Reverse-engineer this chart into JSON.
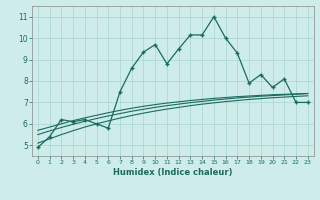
{
  "x": [
    0,
    1,
    2,
    3,
    4,
    5,
    6,
    7,
    8,
    9,
    10,
    11,
    12,
    13,
    14,
    15,
    16,
    17,
    18,
    19,
    20,
    21,
    22,
    23
  ],
  "main_line": [
    4.9,
    5.4,
    6.2,
    6.1,
    6.2,
    6.0,
    5.8,
    7.5,
    8.6,
    9.35,
    9.7,
    8.8,
    9.5,
    10.15,
    10.15,
    11.0,
    10.0,
    9.3,
    7.9,
    8.3,
    7.7,
    8.1,
    7.0,
    7.0
  ],
  "reg1": [
    5.7,
    5.85,
    6.0,
    6.15,
    6.28,
    6.4,
    6.52,
    6.63,
    6.73,
    6.82,
    6.9,
    6.97,
    7.03,
    7.09,
    7.14,
    7.19,
    7.23,
    7.27,
    7.3,
    7.33,
    7.36,
    7.38,
    7.4,
    7.42
  ],
  "reg2": [
    5.5,
    5.67,
    5.83,
    5.98,
    6.12,
    6.25,
    6.37,
    6.48,
    6.59,
    6.68,
    6.77,
    6.85,
    6.92,
    6.99,
    7.05,
    7.11,
    7.16,
    7.21,
    7.25,
    7.29,
    7.32,
    7.35,
    7.38,
    7.41
  ],
  "reg3": [
    5.1,
    5.3,
    5.5,
    5.68,
    5.85,
    6.0,
    6.14,
    6.27,
    6.39,
    6.5,
    6.6,
    6.69,
    6.77,
    6.85,
    6.92,
    6.98,
    7.04,
    7.09,
    7.14,
    7.18,
    7.22,
    7.25,
    7.28,
    7.31
  ],
  "line_color": "#1a6b5e",
  "bg_color": "#cdecea",
  "grid_color": "#aed8d5",
  "xlabel": "Humidex (Indice chaleur)",
  "ylim": [
    4.5,
    11.5
  ],
  "xlim": [
    -0.5,
    23.5
  ],
  "yticks": [
    5,
    6,
    7,
    8,
    9,
    10,
    11
  ],
  "xticks": [
    0,
    1,
    2,
    3,
    4,
    5,
    6,
    7,
    8,
    9,
    10,
    11,
    12,
    13,
    14,
    15,
    16,
    17,
    18,
    19,
    20,
    21,
    22,
    23
  ]
}
